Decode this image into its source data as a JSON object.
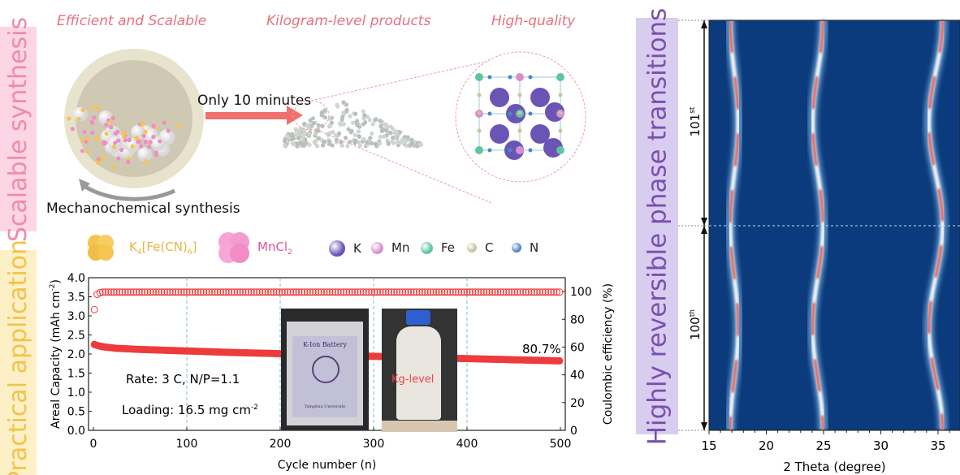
{
  "sections": {
    "synthesis_label": "Scalable synthesis",
    "application_label": "Practical application",
    "phase_label": "Highly reversible phase transitions"
  },
  "headings": [
    "Efficient and Scalable",
    "Kilogram-level products",
    "High-quality"
  ],
  "process": {
    "arrow_text": "Only 10 minutes",
    "mill_caption": "Mechanochemical synthesis"
  },
  "legend": {
    "items": [
      {
        "label": "K4[Fe(CN)6]",
        "main": "K",
        "sub1": "4",
        "mid": "[Fe(CN)",
        "sub2": "6",
        "end": "]",
        "color": "#f5c451"
      },
      {
        "label": "MnCl2",
        "main": "MnCl",
        "sub1": "2",
        "color": "#f28bc6"
      },
      {
        "label": "K",
        "color": "#6a55b5"
      },
      {
        "label": "Mn",
        "color": "#d98ed0"
      },
      {
        "label": "Fe",
        "color": "#5ec4a4"
      },
      {
        "label": "C",
        "color": "#c9c49a"
      },
      {
        "label": "N",
        "color": "#4f86c6"
      }
    ]
  },
  "colors": {
    "synthesis_bg": "#fcd6e5",
    "synthesis_text": "#f08aa8",
    "application_bg": "#fdf0c6",
    "application_text": "#f2c24a",
    "phase_bg": "#d8cdee",
    "phase_text": "#7a4fb3",
    "series": "#ee3b3b",
    "heatmap_bg": "#0b3b7c"
  },
  "chart_data": [
    {
      "type": "scatter",
      "xlabel": "Cycle number (n)",
      "ylabel": "Areal Capacity (mAh cm-2)",
      "ylabel_parts": {
        "main": "Areal Capacity (mAh cm",
        "sup": "-2",
        "end": ")"
      },
      "y2label": "Coulombic efficiency (%)",
      "xlim": [
        0,
        500
      ],
      "ylim": [
        0,
        4.0
      ],
      "y2lim": [
        0,
        110
      ],
      "xticks": [
        "0",
        "100",
        "200",
        "300",
        "400",
        "500"
      ],
      "yticks": [
        "0.0",
        "0.5",
        "1.0",
        "1.5",
        "2.0",
        "2.5",
        "3.0",
        "3.5",
        "4.0"
      ],
      "y2ticks": [
        "0",
        "20",
        "40",
        "60",
        "80",
        "100"
      ],
      "grid": "vertical dashed at x=100,200,300,400",
      "series": [
        {
          "axis": "left",
          "marker": "filled circle",
          "x": [
            1,
            5,
            10,
            25,
            50,
            100,
            150,
            200,
            250,
            300,
            350,
            400,
            450,
            500
          ],
          "values": [
            2.25,
            2.22,
            2.19,
            2.15,
            2.12,
            2.08,
            2.04,
            2.01,
            1.97,
            1.94,
            1.91,
            1.88,
            1.85,
            1.82
          ]
        },
        {
          "axis": "right",
          "marker": "open circle",
          "x": [
            1,
            3,
            5,
            10,
            100,
            200,
            300,
            400,
            500
          ],
          "values": [
            87,
            97,
            99,
            99.6,
            99.6,
            99.6,
            99.6,
            99.6,
            99.6
          ]
        }
      ],
      "annotations": {
        "retention": "80.7%",
        "rate": "Rate: 3 C, N/P=1.1",
        "loading_main": "Loading: 16.5 mg cm",
        "loading_sup": "-2",
        "inset_battery": "K-Ion Battery",
        "inset_battery_org": "Tsinghua University",
        "inset_bottle": "Kg-level"
      }
    },
    {
      "type": "heatmap",
      "xlabel": "2 Theta (degree)",
      "xlim": [
        15,
        37
      ],
      "xticks": [
        "15",
        "20",
        "25",
        "30",
        "35"
      ],
      "cycle_labels": [
        {
          "main": "101",
          "sup": "st"
        },
        {
          "main": "100",
          "sup": "th"
        }
      ],
      "peaks_2theta": [
        17.2,
        24.5,
        34.8
      ]
    }
  ]
}
